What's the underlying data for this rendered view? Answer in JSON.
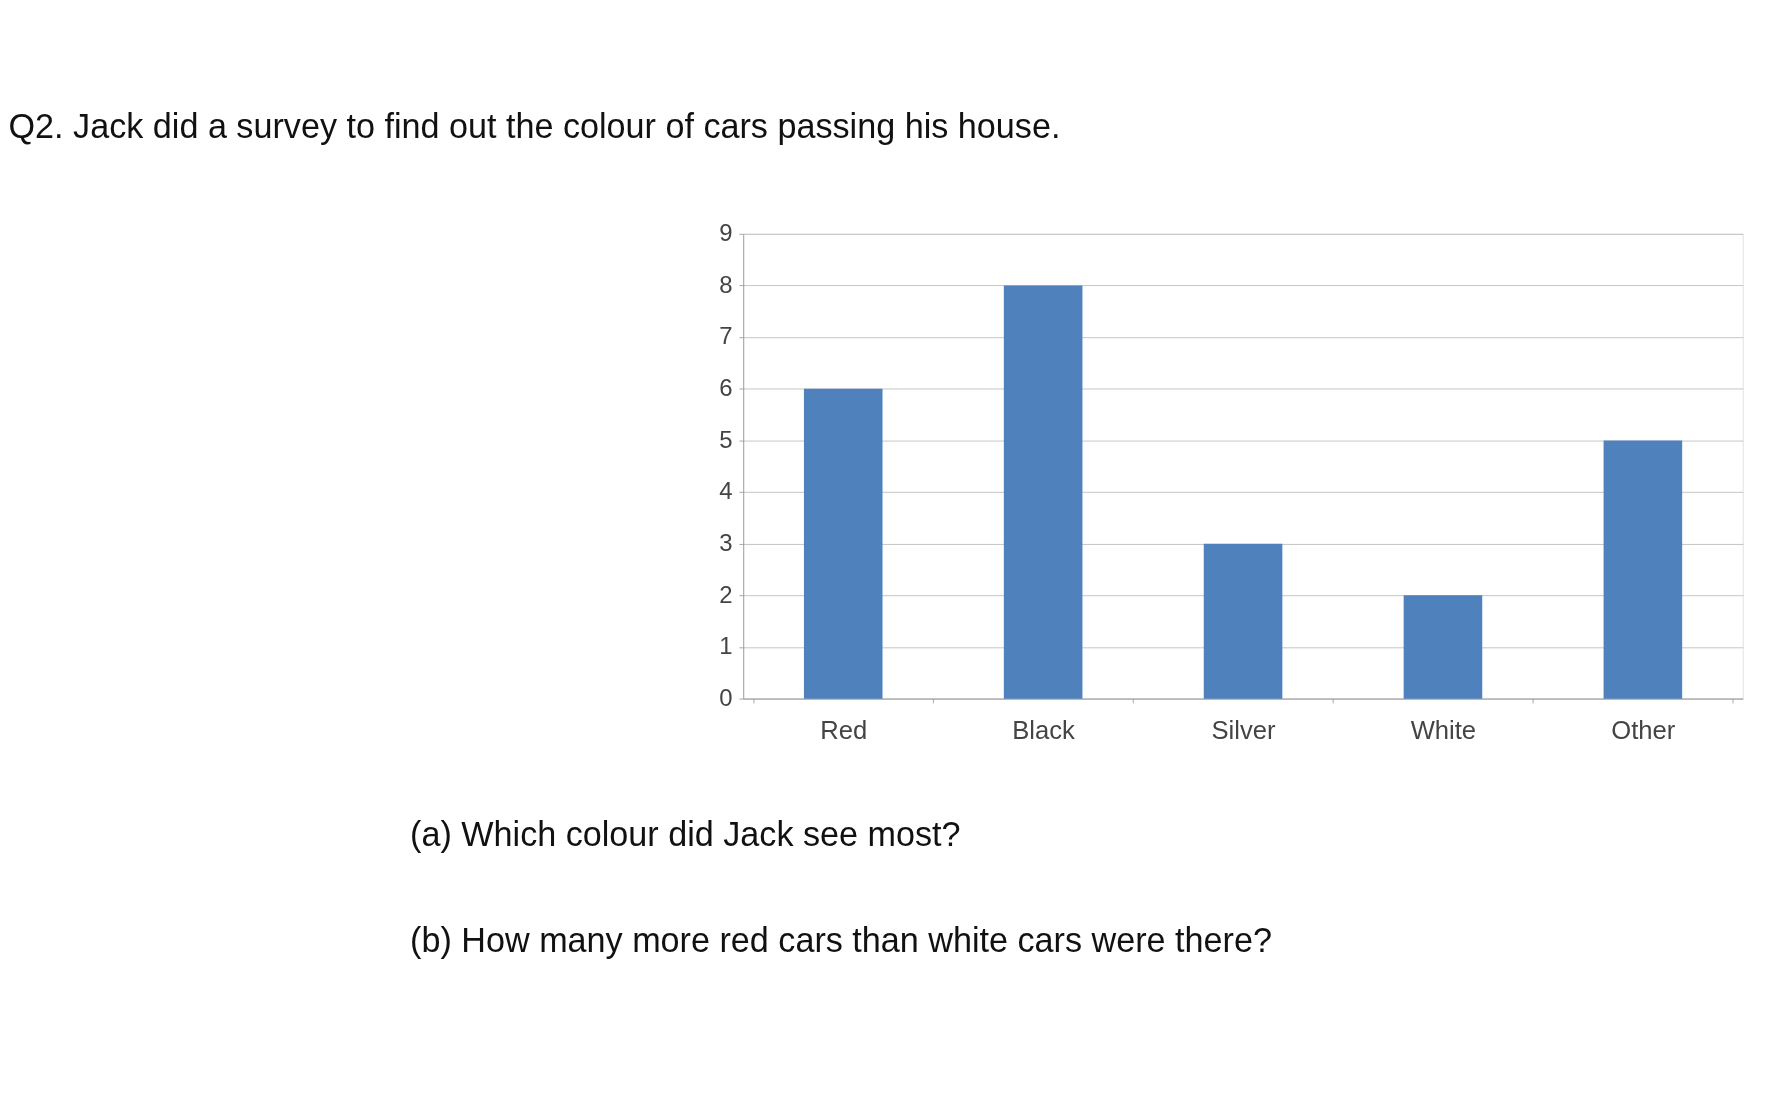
{
  "chart_data": {
    "type": "bar",
    "title": "Q2.    Jack did a survey to find out the colour of cars passing his house.",
    "categories": [
      "Red",
      "Black",
      "Silver",
      "White",
      "Other"
    ],
    "values": [
      6,
      8,
      3,
      2,
      5
    ],
    "color": "#4f81bd",
    "ylim": [
      0,
      9
    ],
    "yticks": [
      0,
      1,
      2,
      3,
      4,
      5,
      6,
      7,
      8,
      9
    ],
    "grid": "y",
    "annotations": [
      "(a)    Which colour did Jack see most?",
      "(b)    How many more red cars than white cars were there?"
    ]
  }
}
